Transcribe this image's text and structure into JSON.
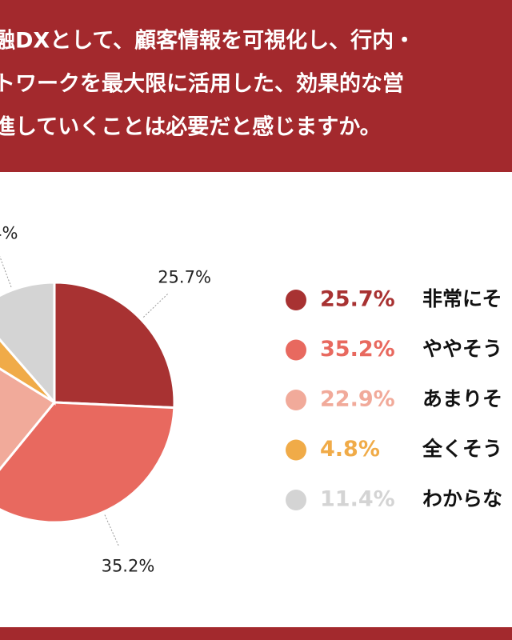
{
  "chart_data": {
    "type": "pie",
    "title_lines": [
      "融DXとして、顧客情報を可視化し、行内・",
      "トワークを最大限に活用した、効果的な営",
      "進していくことは必要だと感じますか。"
    ],
    "categories": [
      "非常にそ",
      "ややそう",
      "あまりそ",
      "全くそう",
      "わからな"
    ],
    "values": [
      25.7,
      35.2,
      22.9,
      4.8,
      11.4
    ],
    "value_labels": [
      "25.7%",
      "35.2%",
      "22.9%",
      "4.8%",
      "11.4%"
    ],
    "colors": [
      "#a83232",
      "#e8695f",
      "#f1aa9a",
      "#f0ab48",
      "#d4d4d4"
    ]
  }
}
